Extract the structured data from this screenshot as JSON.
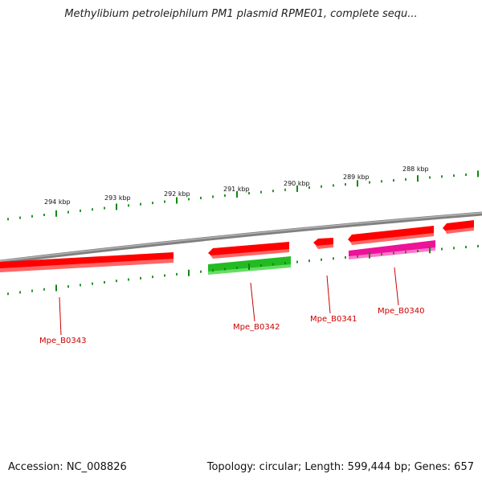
{
  "title": "Methylibium petroleiphilum PM1 plasmid RPME01, complete sequ...",
  "footer": {
    "accession": "Accession: NC_008826",
    "summary": "Topology: circular; Length: 599,444 bp; Genes: 657"
  },
  "ruler": {
    "labels": [
      "294 kbp",
      "293 kbp",
      "292 kbp",
      "291 kbp",
      "290 kbp",
      "289 kbp",
      "288 kbp"
    ]
  },
  "genes": [
    {
      "name": "Mpe_B0343",
      "color": "#ff0000"
    },
    {
      "name": "Mpe_B0342",
      "color": "#ff0000"
    },
    {
      "name": "Mpe_B0341",
      "color": "#ff0000"
    },
    {
      "name": "Mpe_B0340",
      "color": "#ff0000"
    }
  ],
  "colors": {
    "forward_strand": "#ff0000",
    "reverse_strand_cds": "#ff0000",
    "green_feature": "#22bb22",
    "magenta_feature": "#ee1199",
    "backbone": "#888888",
    "ticks": "#118811",
    "gene_label": "#cc0000"
  }
}
